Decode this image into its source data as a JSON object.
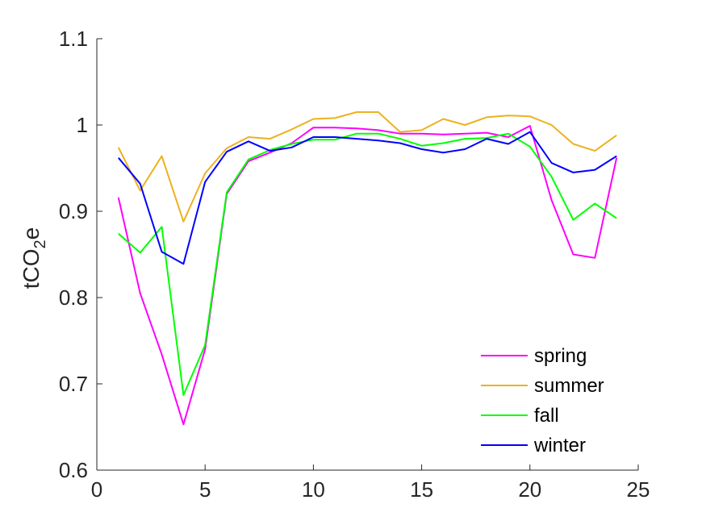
{
  "chart_data": {
    "type": "line",
    "title": "",
    "xlabel": "",
    "ylabel": "tCO",
    "ylabel_subscript": "2",
    "ylabel_suffix": "e",
    "xlim": [
      0,
      25
    ],
    "ylim": [
      0.6,
      1.1
    ],
    "xticks": [
      0,
      5,
      10,
      15,
      20,
      25
    ],
    "yticks": [
      0.6,
      0.7,
      0.8,
      0.9,
      1,
      1.1
    ],
    "xtick_labels": [
      "0",
      "5",
      "10",
      "15",
      "20",
      "25"
    ],
    "ytick_labels": [
      "0.6",
      "0.7",
      "0.8",
      "0.9",
      "1",
      "1.1"
    ],
    "grid": false,
    "legend_position": "bottom-right",
    "x": [
      1,
      2,
      3,
      4,
      5,
      6,
      7,
      8,
      9,
      10,
      11,
      12,
      13,
      14,
      15,
      16,
      17,
      18,
      19,
      20,
      21,
      22,
      23,
      24
    ],
    "series": [
      {
        "name": "spring",
        "color": "#ff00ff",
        "values": [
          0.916,
          0.805,
          0.734,
          0.653,
          0.74,
          0.92,
          0.958,
          0.968,
          0.979,
          0.997,
          0.997,
          0.996,
          0.994,
          0.99,
          0.99,
          0.989,
          0.99,
          0.991,
          0.986,
          0.999,
          0.913,
          0.85,
          0.846,
          0.962
        ]
      },
      {
        "name": "summer",
        "color": "#edb120",
        "values": [
          0.974,
          0.924,
          0.964,
          0.888,
          0.944,
          0.973,
          0.986,
          0.984,
          0.995,
          1.007,
          1.008,
          1.015,
          1.015,
          0.992,
          0.994,
          1.007,
          1.0,
          1.009,
          1.011,
          1.01,
          1.0,
          0.978,
          0.97,
          0.988
        ]
      },
      {
        "name": "fall",
        "color": "#00ff00",
        "values": [
          0.874,
          0.852,
          0.882,
          0.687,
          0.745,
          0.922,
          0.96,
          0.971,
          0.978,
          0.983,
          0.983,
          0.99,
          0.99,
          0.984,
          0.976,
          0.979,
          0.984,
          0.985,
          0.99,
          0.975,
          0.94,
          0.89,
          0.909,
          0.892
        ]
      },
      {
        "name": "winter",
        "color": "#0000ff",
        "values": [
          0.962,
          0.932,
          0.853,
          0.839,
          0.934,
          0.969,
          0.981,
          0.97,
          0.974,
          0.986,
          0.986,
          0.984,
          0.982,
          0.979,
          0.972,
          0.968,
          0.972,
          0.984,
          0.978,
          0.992,
          0.956,
          0.945,
          0.948,
          0.964
        ]
      }
    ]
  }
}
